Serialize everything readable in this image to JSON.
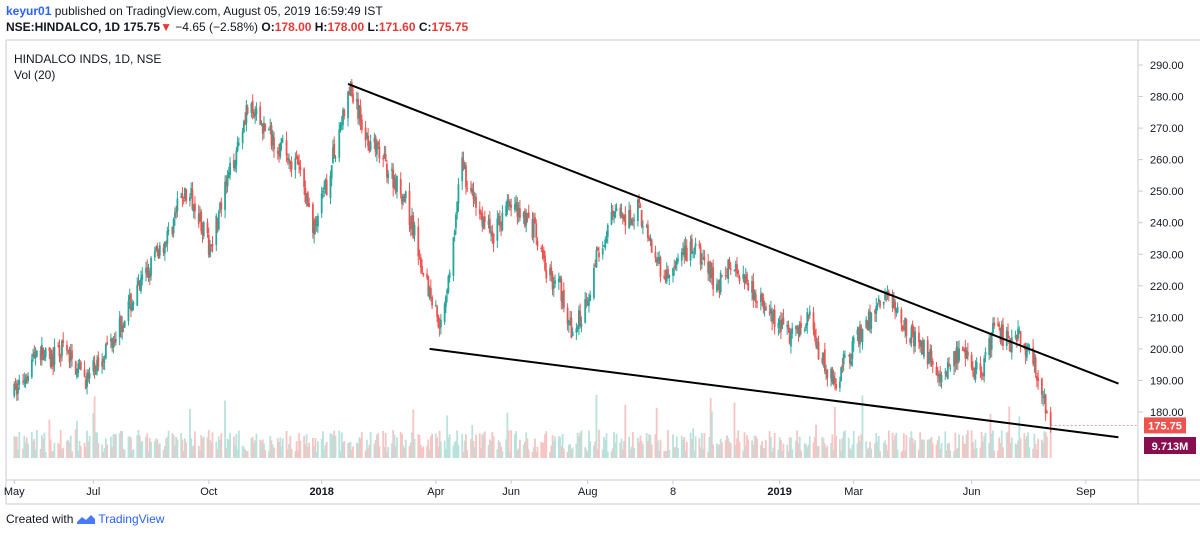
{
  "header": {
    "author": "keyur01",
    "published": "published on TradingView.com, August 05, 2019 16:59:49 IST",
    "symbol": "NSE:HINDALCO, 1D",
    "last": "175.75",
    "arrow": "▼",
    "change": "−4.65 (−2.58%)",
    "o_label": "O:",
    "o_value": "178.00",
    "h_label": "H:",
    "h_value": "178.00",
    "l_label": "L:",
    "l_value": "171.60",
    "c_label": "C:",
    "c_value": "175.75"
  },
  "footer": {
    "created_with": "Created with",
    "brand": "TradingView"
  },
  "chart_data": {
    "type": "candlestick",
    "title": "HINDALCO INDS, 1D, NSE",
    "volume_label": "Vol (20)",
    "colors": {
      "up": "#26a69a",
      "down": "#ef5350",
      "trendline": "#000000",
      "price_tag": "#ef5350",
      "volume_tag": "#880e4f"
    },
    "y_axis": {
      "ticks": [
        180,
        190,
        200,
        210,
        220,
        230,
        240,
        250,
        260,
        270,
        280,
        290
      ],
      "range": [
        165,
        297
      ]
    },
    "x_axis": {
      "labels": [
        "May",
        "Jul",
        "Oct",
        "2018",
        "Apr",
        "Jun",
        "Aug",
        "8",
        "2019",
        "Mar",
        "Jun",
        "Sep"
      ],
      "bold_labels": [
        "2018",
        "2019"
      ],
      "label_dates": [
        "2017-05-01",
        "2017-07-03",
        "2017-10-03",
        "2018-01-01",
        "2018-04-02",
        "2018-06-01",
        "2018-08-01",
        "2018-10-08",
        "2019-01-01",
        "2019-03-01",
        "2019-06-03",
        "2019-09-02"
      ]
    },
    "price_points": [
      [
        "2017-05-01",
        186
      ],
      [
        "2017-05-10",
        192
      ],
      [
        "2017-05-19",
        200
      ],
      [
        "2017-05-30",
        196
      ],
      [
        "2017-06-09",
        200
      ],
      [
        "2017-06-20",
        194
      ],
      [
        "2017-06-29",
        190
      ],
      [
        "2017-07-10",
        198
      ],
      [
        "2017-07-20",
        205
      ],
      [
        "2017-07-31",
        213
      ],
      [
        "2017-08-10",
        220
      ],
      [
        "2017-08-22",
        230
      ],
      [
        "2017-09-01",
        236
      ],
      [
        "2017-09-12",
        249
      ],
      [
        "2017-09-22",
        247
      ],
      [
        "2017-10-03",
        232
      ],
      [
        "2017-10-13",
        245
      ],
      [
        "2017-10-24",
        262
      ],
      [
        "2017-11-02",
        276
      ],
      [
        "2017-11-13",
        272
      ],
      [
        "2017-11-23",
        267
      ],
      [
        "2017-12-04",
        262
      ],
      [
        "2017-12-14",
        257
      ],
      [
        "2017-12-26",
        238
      ],
      [
        "2018-01-05",
        252
      ],
      [
        "2018-01-16",
        271
      ],
      [
        "2018-01-24",
        282
      ],
      [
        "2018-02-05",
        268
      ],
      [
        "2018-02-15",
        262
      ],
      [
        "2018-02-26",
        255
      ],
      [
        "2018-03-08",
        248
      ],
      [
        "2018-03-19",
        232
      ],
      [
        "2018-03-28",
        218
      ],
      [
        "2018-04-06",
        208
      ],
      [
        "2018-04-17",
        236
      ],
      [
        "2018-04-23",
        262
      ],
      [
        "2018-04-27",
        252
      ],
      [
        "2018-05-08",
        242
      ],
      [
        "2018-05-18",
        236
      ],
      [
        "2018-05-29",
        246
      ],
      [
        "2018-06-08",
        244
      ],
      [
        "2018-06-19",
        238
      ],
      [
        "2018-06-29",
        224
      ],
      [
        "2018-07-10",
        220
      ],
      [
        "2018-07-20",
        204
      ],
      [
        "2018-07-31",
        215
      ],
      [
        "2018-08-10",
        232
      ],
      [
        "2018-08-21",
        242
      ],
      [
        "2018-08-31",
        240
      ],
      [
        "2018-09-10",
        246
      ],
      [
        "2018-09-20",
        232
      ],
      [
        "2018-10-01",
        222
      ],
      [
        "2018-10-11",
        226
      ],
      [
        "2018-10-22",
        232
      ],
      [
        "2018-11-01",
        228
      ],
      [
        "2018-11-12",
        220
      ],
      [
        "2018-11-22",
        226
      ],
      [
        "2018-12-03",
        224
      ],
      [
        "2018-12-13",
        218
      ],
      [
        "2018-12-24",
        210
      ],
      [
        "2019-01-03",
        206
      ],
      [
        "2019-01-14",
        204
      ],
      [
        "2019-01-24",
        210
      ],
      [
        "2019-02-04",
        196
      ],
      [
        "2019-02-14",
        190
      ],
      [
        "2019-02-25",
        198
      ],
      [
        "2019-03-07",
        205
      ],
      [
        "2019-03-18",
        212
      ],
      [
        "2019-03-28",
        217
      ],
      [
        "2019-04-08",
        210
      ],
      [
        "2019-04-18",
        203
      ],
      [
        "2019-04-30",
        198
      ],
      [
        "2019-05-10",
        191
      ],
      [
        "2019-05-21",
        198
      ],
      [
        "2019-05-31",
        196
      ],
      [
        "2019-06-11",
        192
      ],
      [
        "2019-06-21",
        207
      ],
      [
        "2019-07-02",
        202
      ],
      [
        "2019-07-12",
        204
      ],
      [
        "2019-07-23",
        196
      ],
      [
        "2019-07-31",
        184
      ],
      [
        "2019-08-05",
        175.75
      ]
    ],
    "last_price": 175.75,
    "last_price_label": "175.75",
    "last_volume_label": "9.713M",
    "trendlines": [
      {
        "start": [
          "2018-01-22",
          284
        ],
        "end": [
          "2019-09-28",
          189
        ]
      },
      {
        "start": [
          "2018-03-28",
          200
        ],
        "end": [
          "2019-09-28",
          172
        ]
      }
    ]
  }
}
